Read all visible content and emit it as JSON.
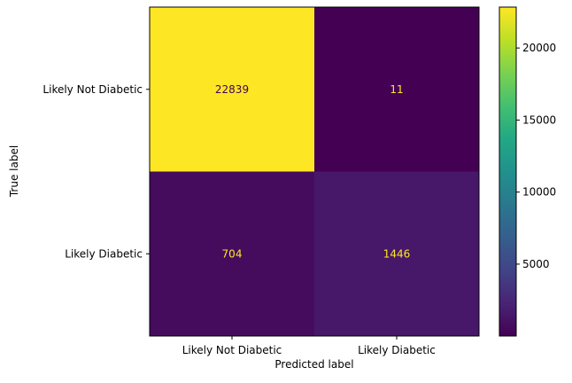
{
  "chart_data": {
    "type": "heatmap",
    "title": "",
    "xlabel": "Predicted label",
    "ylabel": "True label",
    "x_categories": [
      "Likely Not Diabetic",
      "Likely Diabetic"
    ],
    "y_categories": [
      "Likely Not Diabetic",
      "Likely Diabetic"
    ],
    "matrix": [
      [
        22839,
        11
      ],
      [
        704,
        1446
      ]
    ],
    "colormap": "viridis",
    "colorbar": {
      "min": 11,
      "max": 22839,
      "ticks": [
        5000,
        10000,
        15000,
        20000
      ]
    },
    "grid": false
  },
  "colors": {
    "text_on_dark": "#fde725",
    "text_on_light": "#440154",
    "axis": "#000000"
  }
}
